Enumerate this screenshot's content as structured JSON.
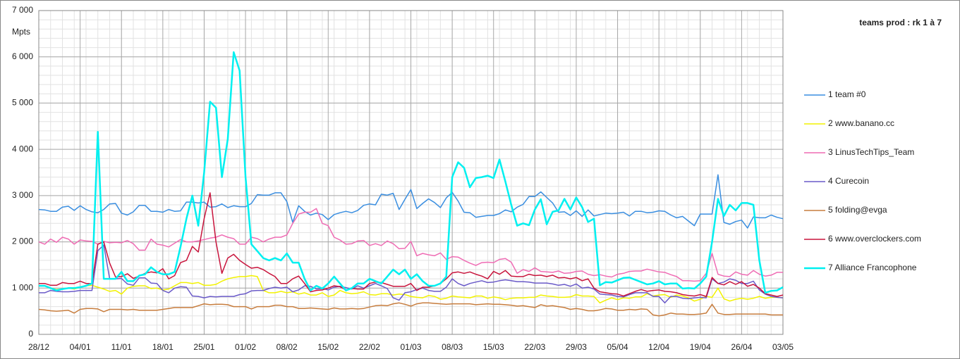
{
  "chart_data": {
    "type": "line",
    "title": "teams prod :  rk 1 à 7",
    "y_label": "Mpts",
    "categories": [
      "28/12",
      null,
      null,
      null,
      null,
      null,
      null,
      "04/01",
      null,
      null,
      null,
      null,
      null,
      null,
      "11/01",
      null,
      null,
      null,
      null,
      null,
      null,
      "18/01",
      null,
      null,
      null,
      null,
      null,
      null,
      "25/01",
      null,
      null,
      null,
      null,
      null,
      null,
      "01/02",
      null,
      null,
      null,
      null,
      null,
      null,
      "08/02",
      null,
      null,
      null,
      null,
      null,
      null,
      "15/02",
      null,
      null,
      null,
      null,
      null,
      null,
      "22/02",
      null,
      null,
      null,
      null,
      null,
      null,
      "01/03",
      null,
      null,
      null,
      null,
      null,
      null,
      "08/03",
      null,
      null,
      null,
      null,
      null,
      null,
      "15/03",
      null,
      null,
      null,
      null,
      null,
      null,
      "22/03",
      null,
      null,
      null,
      null,
      null,
      null,
      "29/03",
      null,
      null,
      null,
      null,
      null,
      null,
      "05/04",
      null,
      null,
      null,
      null,
      null,
      null,
      "12/04",
      null,
      null,
      null,
      null,
      null,
      null,
      "19/04",
      null,
      null,
      null,
      null,
      null,
      null,
      "26/04",
      null,
      null,
      null,
      null,
      null,
      null,
      "03/05"
    ],
    "ylim": [
      0,
      7000
    ],
    "yticks": [
      0,
      {
        "value": 1000,
        "label": "1 000"
      },
      {
        "value": 2000,
        "label": "2 000"
      },
      {
        "value": 3000,
        "label": "3 000"
      },
      {
        "value": 4000,
        "label": "4 000"
      },
      {
        "value": 5000,
        "label": "5 000"
      },
      {
        "value": 6000,
        "label": "6 000"
      },
      {
        "value": 7000,
        "label": "7 000"
      }
    ],
    "grid": true,
    "series": [
      {
        "name": "1 team #0",
        "color": "#3a8ee0",
        "values": [
          2700,
          2690,
          2660,
          2660,
          2750,
          2770,
          2680,
          2780,
          2700,
          2650,
          2630,
          2700,
          2820,
          2830,
          2620,
          2580,
          2650,
          2790,
          2790,
          2660,
          2660,
          2640,
          2700,
          2660,
          2670,
          2860,
          2860,
          2840,
          2860,
          2750,
          2760,
          2820,
          2740,
          2780,
          2760,
          2760,
          2830,
          3020,
          3010,
          3010,
          3060,
          3060,
          2870,
          2420,
          2780,
          2660,
          2580,
          2620,
          2590,
          2480,
          2590,
          2630,
          2660,
          2630,
          2680,
          2790,
          2820,
          2800,
          3030,
          3010,
          3050,
          2700,
          2920,
          3130,
          2720,
          2830,
          2930,
          2850,
          2740,
          2950,
          3070,
          2880,
          2640,
          2630,
          2530,
          2550,
          2570,
          2570,
          2610,
          2690,
          2650,
          2750,
          2810,
          2980,
          2980,
          3080,
          2960,
          2840,
          2640,
          2650,
          2570,
          2670,
          2550,
          2690,
          2560,
          2590,
          2620,
          2610,
          2620,
          2640,
          2560,
          2660,
          2660,
          2630,
          2640,
          2670,
          2660,
          2580,
          2520,
          2550,
          2450,
          2350,
          2600,
          2600,
          2600,
          3450,
          2420,
          2380,
          2440,
          2470,
          2300,
          2540,
          2520,
          2520,
          2580,
          2530,
          2500
        ]
      },
      {
        "name": "2 www.banano.cc",
        "color": "#f2f200",
        "values": [
          1050,
          1050,
          1000,
          970,
          980,
          1000,
          980,
          1020,
          1050,
          1060,
          1020,
          980,
          930,
          950,
          870,
          1000,
          1040,
          1050,
          1050,
          990,
          1000,
          960,
          980,
          1050,
          1120,
          1120,
          1100,
          1120,
          1060,
          1060,
          1080,
          1150,
          1200,
          1230,
          1250,
          1250,
          1270,
          1250,
          950,
          900,
          900,
          930,
          900,
          920,
          870,
          900,
          850,
          850,
          900,
          820,
          850,
          950,
          900,
          880,
          890,
          920,
          860,
          850,
          880,
          880,
          850,
          870,
          860,
          820,
          800,
          790,
          840,
          820,
          760,
          780,
          830,
          810,
          800,
          790,
          830,
          830,
          780,
          810,
          790,
          750,
          780,
          790,
          790,
          800,
          800,
          850,
          830,
          820,
          800,
          800,
          810,
          860,
          830,
          830,
          820,
          680,
          740,
          790,
          750,
          790,
          780,
          810,
          810,
          880,
          830,
          850,
          860,
          800,
          850,
          830,
          790,
          720,
          760,
          820,
          800,
          1000,
          770,
          720,
          760,
          780,
          760,
          780,
          820,
          780,
          800,
          800,
          790
        ]
      },
      {
        "name": "3 LinusTechTips_Team",
        "color": "#ef6cb4",
        "values": [
          2000,
          1950,
          2060,
          1990,
          2100,
          2060,
          1950,
          2040,
          2020,
          2010,
          1950,
          2010,
          1980,
          1990,
          1980,
          2030,
          1960,
          1820,
          1820,
          2060,
          1950,
          1930,
          1890,
          1970,
          2050,
          2000,
          2000,
          2020,
          2050,
          2080,
          2100,
          2150,
          2100,
          2070,
          1950,
          1950,
          2100,
          2070,
          2000,
          2060,
          2100,
          2100,
          2150,
          2400,
          2600,
          2640,
          2640,
          2720,
          2400,
          2350,
          2100,
          2040,
          1950,
          1960,
          2020,
          2030,
          1920,
          1960,
          1920,
          2020,
          1960,
          1850,
          1860,
          2010,
          1700,
          1750,
          1720,
          1700,
          1760,
          1620,
          1680,
          1670,
          1600,
          1540,
          1490,
          1550,
          1560,
          1550,
          1620,
          1640,
          1560,
          1320,
          1400,
          1360,
          1440,
          1360,
          1350,
          1340,
          1370,
          1320,
          1330,
          1360,
          1370,
          1300,
          1270,
          1290,
          1260,
          1240,
          1300,
          1320,
          1360,
          1370,
          1370,
          1410,
          1380,
          1350,
          1340,
          1290,
          1250,
          1160,
          1160,
          1150,
          1160,
          1320,
          1750,
          1300,
          1260,
          1250,
          1350,
          1300,
          1280,
          1380,
          1300,
          1260,
          1280,
          1340,
          1340
        ]
      },
      {
        "name": "4 Curecoin",
        "color": "#6a5ac8",
        "values": [
          900,
          900,
          950,
          930,
          920,
          920,
          930,
          950,
          950,
          950,
          1810,
          1930,
          1200,
          1200,
          1210,
          1090,
          1060,
          1220,
          1220,
          1110,
          1100,
          950,
          900,
          1000,
          1030,
          1020,
          830,
          820,
          790,
          820,
          810,
          820,
          820,
          820,
          860,
          880,
          940,
          950,
          950,
          990,
          1020,
          1000,
          1020,
          920,
          960,
          1050,
          1040,
          980,
          990,
          960,
          1020,
          1040,
          1010,
          980,
          1050,
          1000,
          1050,
          1100,
          1050,
          990,
          790,
          740,
          900,
          920,
          970,
          1000,
          950,
          930,
          930,
          1020,
          1200,
          1100,
          1050,
          1100,
          1130,
          1160,
          1120,
          1130,
          1160,
          1180,
          1160,
          1140,
          1140,
          1130,
          1110,
          1110,
          1110,
          1090,
          1060,
          1080,
          1040,
          1090,
          1000,
          1020,
          980,
          870,
          860,
          850,
          820,
          810,
          860,
          900,
          900,
          900,
          820,
          820,
          680,
          820,
          820,
          780,
          770,
          790,
          800,
          790,
          1200,
          1100,
          1130,
          1200,
          1170,
          1100,
          1100,
          1150,
          960,
          870,
          820,
          800,
          790
        ]
      },
      {
        "name": "5 folding@evga",
        "color": "#c77d3e",
        "values": [
          540,
          530,
          510,
          500,
          510,
          520,
          460,
          540,
          560,
          560,
          550,
          490,
          540,
          540,
          540,
          530,
          540,
          520,
          520,
          520,
          520,
          540,
          560,
          580,
          580,
          580,
          580,
          620,
          660,
          640,
          650,
          650,
          640,
          600,
          600,
          600,
          550,
          600,
          600,
          600,
          630,
          630,
          600,
          600,
          560,
          560,
          570,
          560,
          550,
          540,
          570,
          550,
          550,
          560,
          550,
          560,
          590,
          620,
          630,
          620,
          660,
          680,
          650,
          610,
          660,
          680,
          680,
          670,
          660,
          650,
          660,
          660,
          660,
          660,
          640,
          650,
          660,
          650,
          650,
          640,
          630,
          610,
          620,
          600,
          580,
          640,
          610,
          620,
          600,
          580,
          540,
          560,
          540,
          510,
          510,
          530,
          560,
          550,
          520,
          520,
          540,
          530,
          550,
          540,
          420,
          400,
          420,
          460,
          440,
          440,
          430,
          430,
          440,
          460,
          650,
          460,
          430,
          430,
          440,
          440,
          440,
          440,
          440,
          440,
          420,
          420,
          420
        ]
      },
      {
        "name": "6 www.overclockers.com",
        "color": "#c8143c",
        "values": [
          1100,
          1100,
          1060,
          1060,
          1120,
          1100,
          1100,
          1150,
          1100,
          1100,
          1950,
          2000,
          1540,
          1240,
          1250,
          1310,
          1210,
          1260,
          1320,
          1350,
          1330,
          1420,
          1200,
          1270,
          1550,
          1600,
          1900,
          1780,
          2500,
          3060,
          2000,
          1320,
          1650,
          1730,
          1600,
          1510,
          1430,
          1450,
          1400,
          1320,
          1250,
          1100,
          1100,
          1200,
          1260,
          1100,
          920,
          950,
          960,
          1000,
          1050,
          1030,
          960,
          990,
          980,
          980,
          1100,
          1130,
          1120,
          1080,
          1040,
          1040,
          1040,
          1100,
          950,
          1020,
          1020,
          1050,
          1100,
          1200,
          1330,
          1350,
          1320,
          1350,
          1300,
          1260,
          1200,
          1360,
          1300,
          1380,
          1260,
          1250,
          1250,
          1300,
          1270,
          1280,
          1250,
          1280,
          1220,
          1230,
          1200,
          1230,
          1160,
          1200,
          1000,
          920,
          900,
          880,
          870,
          830,
          880,
          930,
          970,
          930,
          950,
          960,
          930,
          920,
          900,
          860,
          840,
          830,
          860,
          820,
          1230,
          1100,
          1070,
          1140,
          1080,
          1140,
          1040,
          1080,
          1000,
          880,
          850,
          820,
          850
        ]
      },
      {
        "name": "7 Alliance Francophone",
        "color": "#00f0f0",
        "values": [
          1050,
          1050,
          1000,
          950,
          980,
          1000,
          1000,
          1020,
          1050,
          1100,
          4380,
          1200,
          1200,
          1200,
          1350,
          1150,
          1150,
          1270,
          1300,
          1450,
          1350,
          1300,
          1300,
          1350,
          1900,
          2500,
          3000,
          2350,
          3500,
          5030,
          4900,
          3400,
          4220,
          6100,
          5700,
          3400,
          1950,
          1800,
          1650,
          1600,
          1650,
          1600,
          1750,
          1550,
          1550,
          1200,
          950,
          1050,
          990,
          1100,
          1250,
          1100,
          950,
          1000,
          1100,
          1100,
          1200,
          1150,
          1100,
          1250,
          1400,
          1300,
          1400,
          1200,
          1300,
          1150,
          1050,
          1050,
          1100,
          1250,
          3400,
          3720,
          3600,
          3180,
          3380,
          3400,
          3430,
          3380,
          3780,
          3300,
          2800,
          2350,
          2400,
          2360,
          2700,
          2920,
          2380,
          2650,
          2680,
          2930,
          2700,
          2960,
          2750,
          2430,
          2500,
          1060,
          1130,
          1120,
          1170,
          1220,
          1230,
          1180,
          1130,
          1080,
          1100,
          1150,
          1080,
          1100,
          1100,
          990,
          1000,
          990,
          1100,
          1250,
          2000,
          2930,
          2560,
          2800,
          2680,
          2840,
          2840,
          2800,
          1600,
          900,
          940,
          950,
          1020
        ]
      }
    ]
  }
}
